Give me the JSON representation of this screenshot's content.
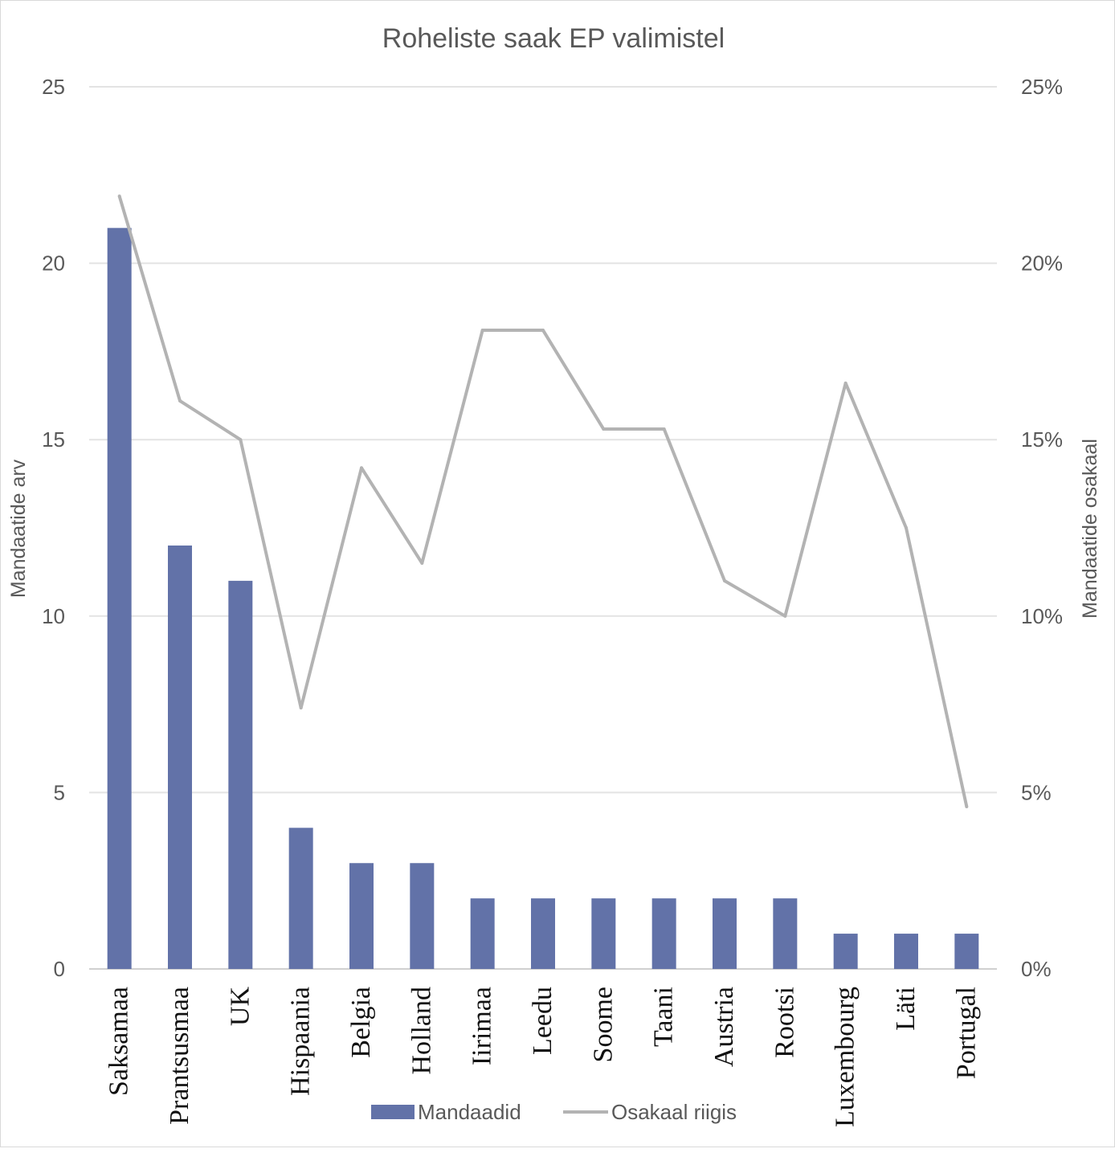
{
  "chart_data": {
    "type": "bar",
    "title": "Roheliste saak EP valimistel",
    "categories": [
      "Saksamaa",
      "Prantsusmaa",
      "UK",
      "Hispaania",
      "Belgia",
      "Holland",
      "Iirimaa",
      "Leedu",
      "Soome",
      "Taani",
      "Austria",
      "Rootsi",
      "Luxembourg",
      "Läti",
      "Portugal"
    ],
    "series": [
      {
        "name": "Mandaadid",
        "type": "bar",
        "axis": "left",
        "color": "#6272a8",
        "values": [
          21,
          12,
          11,
          4,
          3,
          3,
          2,
          2,
          2,
          2,
          2,
          2,
          1,
          1,
          1
        ]
      },
      {
        "name": "Osakaal riigis",
        "type": "line",
        "axis": "right",
        "color": "#b3b3b3",
        "values": [
          0.219,
          0.161,
          0.15,
          0.074,
          0.142,
          0.115,
          0.181,
          0.181,
          0.153,
          0.153,
          0.11,
          0.1,
          0.166,
          0.125,
          0.046
        ]
      }
    ],
    "ylabel": "Mandaatide arv",
    "ylabel_right": "Mandaatide osakaal",
    "ylim": [
      0,
      25
    ],
    "ylim_right": [
      0,
      0.25
    ],
    "yticks": [
      "0",
      "5",
      "10",
      "15",
      "20",
      "25"
    ],
    "yticks_right": [
      "0%",
      "5%",
      "10%",
      "15%",
      "20%",
      "25%"
    ],
    "grid": true,
    "legend": "bottom-center"
  }
}
